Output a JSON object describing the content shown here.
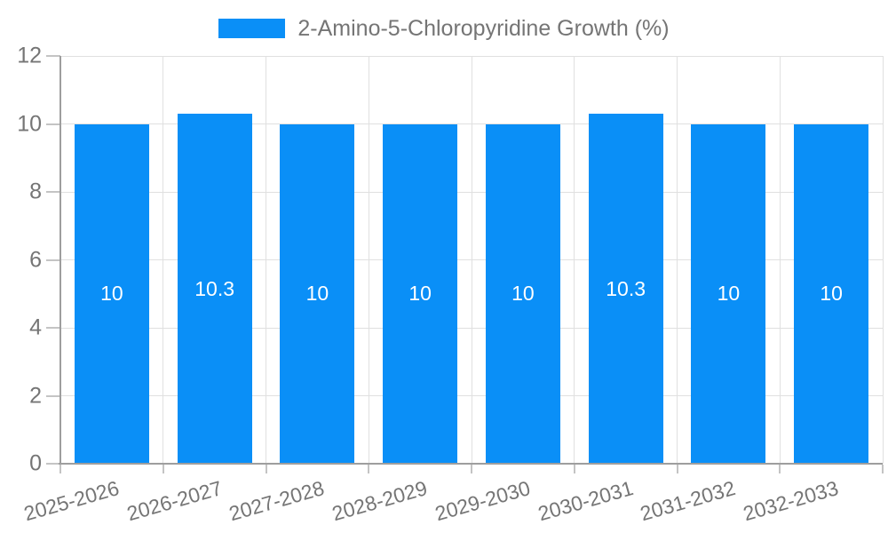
{
  "chart_data": {
    "type": "bar",
    "title": "",
    "legend": "2-Amino-5-Chloropyridine Growth (%)",
    "legend_position": "top",
    "categories": [
      "2025-2026",
      "2026-2027",
      "2027-2028",
      "2028-2029",
      "2029-2030",
      "2030-2031",
      "2031-2032",
      "2032-2033"
    ],
    "series": [
      {
        "name": "2-Amino-5-Chloropyridine Growth (%)",
        "values": [
          10,
          10.3,
          10,
          10,
          10,
          10.3,
          10,
          10
        ]
      }
    ],
    "bar_value_labels": [
      "10",
      "10.3",
      "10",
      "10",
      "10",
      "10.3",
      "10",
      "10"
    ],
    "xlabel": "",
    "ylabel": "",
    "ylim": [
      0,
      12
    ],
    "yticks": [
      0,
      2,
      4,
      6,
      8,
      10,
      12
    ],
    "grid": true,
    "colors": {
      "bar": "#0a8ff7",
      "grid": "#e0e0e0",
      "axis": "#9e9e9e",
      "tick": "#c4c4c4",
      "text": "#757575",
      "value_label": "#ffffff",
      "background": "#ffffff"
    }
  }
}
